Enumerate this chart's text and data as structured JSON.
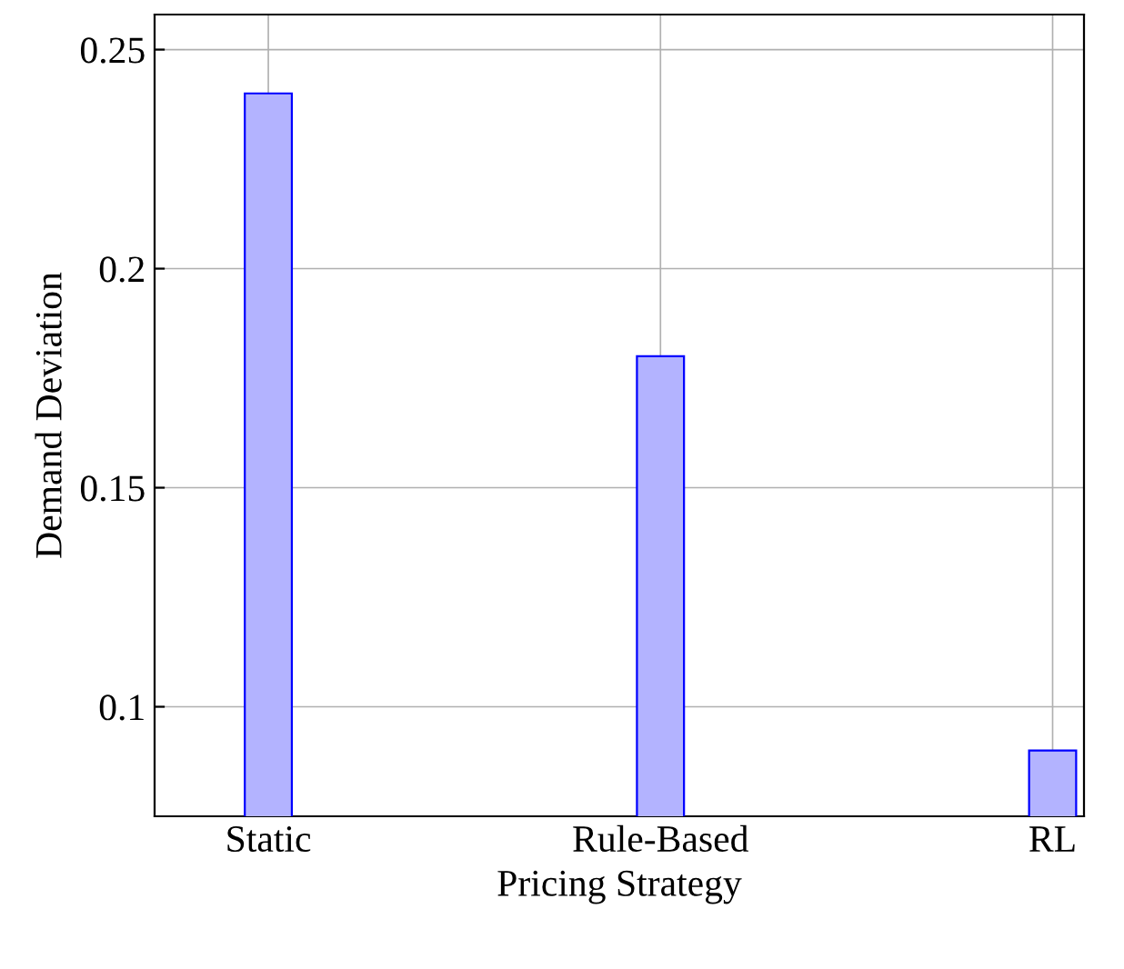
{
  "chart_data": {
    "type": "bar",
    "xlabel": "Pricing Strategy",
    "ylabel": "Demand Deviation",
    "categories": [
      "Static",
      "Rule-Based",
      "RL"
    ],
    "values": [
      0.24,
      0.18,
      0.09
    ],
    "color": "#b3b3ff",
    "ylim": [
      0.075,
      0.258
    ],
    "yticks": [
      0.1,
      0.15,
      0.2,
      0.25
    ],
    "grid": true
  }
}
